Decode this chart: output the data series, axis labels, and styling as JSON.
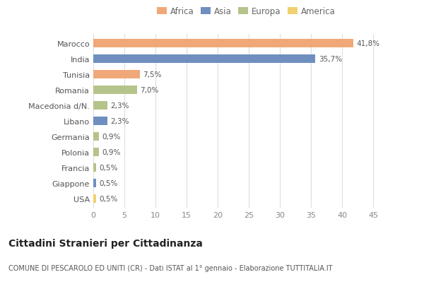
{
  "categories": [
    "Marocco",
    "India",
    "Tunisia",
    "Romania",
    "Macedonia d/N.",
    "Libano",
    "Germania",
    "Polonia",
    "Francia",
    "Giappone",
    "USA"
  ],
  "values": [
    41.8,
    35.7,
    7.5,
    7.0,
    2.3,
    2.3,
    0.9,
    0.9,
    0.5,
    0.5,
    0.5
  ],
  "labels": [
    "41,8%",
    "35,7%",
    "7,5%",
    "7,0%",
    "2,3%",
    "2,3%",
    "0,9%",
    "0,9%",
    "0,5%",
    "0,5%",
    "0,5%"
  ],
  "colors": [
    "#F0A878",
    "#6E8FC0",
    "#F0A878",
    "#B5C48A",
    "#B5C48A",
    "#6E8FC0",
    "#B5C48A",
    "#B5C48A",
    "#B5C48A",
    "#6E8FC0",
    "#F0D070"
  ],
  "legend_labels": [
    "Africa",
    "Asia",
    "Europa",
    "America"
  ],
  "legend_colors": [
    "#F0A878",
    "#6E8FC0",
    "#B5C48A",
    "#F0D070"
  ],
  "xlim": [
    0,
    47
  ],
  "xticks": [
    0,
    5,
    10,
    15,
    20,
    25,
    30,
    35,
    40,
    45
  ],
  "title": "Cittadini Stranieri per Cittadinanza",
  "subtitle": "COMUNE DI PESCAROLO ED UNITI (CR) - Dati ISTAT al 1° gennaio - Elaborazione TUTTITALIA.IT",
  "background_color": "#ffffff",
  "grid_color": "#dddddd",
  "bar_height": 0.55
}
